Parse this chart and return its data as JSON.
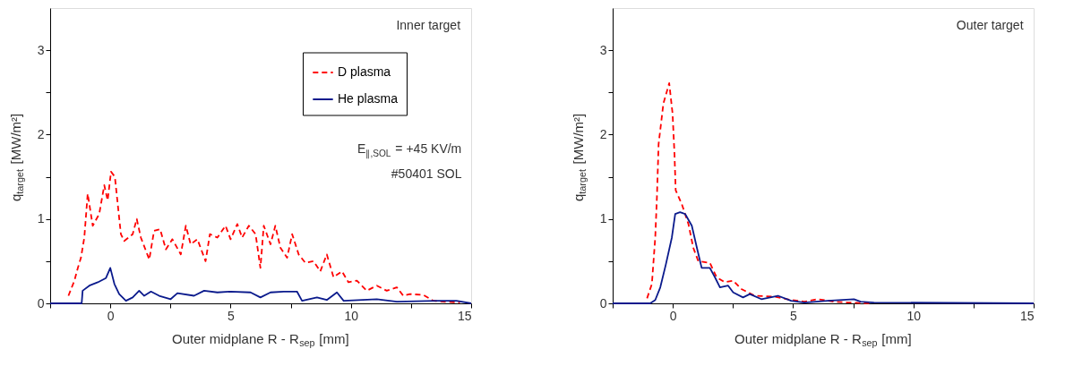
{
  "chart_data": [
    {
      "type": "line",
      "xlabel": "Outer midplane R - R$_{sep}$ [mm]",
      "ylabel": "q$_{target}$ [MW/m²]",
      "annotations": [
        "Inner target",
        "E$_{∥,SOL}$ = +45 KV/m",
        "#50401 SOL"
      ],
      "xlim": [
        -2.5,
        15
      ],
      "ylim": [
        0,
        3.5
      ],
      "xticks": [
        {
          "value": -2.5,
          "label": null
        },
        0,
        {
          "value": 2.5,
          "label": null
        },
        5,
        {
          "value": 7.5,
          "label": null
        },
        10,
        {
          "value": 12.5,
          "label": null
        },
        15
      ],
      "yticks": [
        0,
        {
          "value": 0.5,
          "label": null
        },
        1,
        {
          "value": 1.5,
          "label": null
        },
        2,
        {
          "value": 2.5,
          "label": null
        },
        3
      ],
      "grid": false,
      "legend": "top right",
      "series": [
        {
          "name": "D plasma",
          "color": "#ff0000",
          "line_style": "dashed",
          "x": [
            -1.74,
            -1.49,
            -1.35,
            -1.22,
            -1.08,
            -0.94,
            -0.73,
            -0.46,
            -0.25,
            -0.11,
            0.03,
            0.19,
            0.44,
            0.58,
            0.93,
            1.1,
            1.27,
            1.62,
            1.82,
            2.07,
            2.31,
            2.58,
            2.93,
            3.14,
            3.34,
            3.62,
            3.96,
            4.14,
            4.45,
            4.79,
            5.0,
            5.28,
            5.48,
            5.76,
            6.04,
            6.24,
            6.38,
            6.66,
            6.86,
            7.07,
            7.35,
            7.56,
            7.83,
            8.11,
            8.45,
            8.73,
            9.0,
            9.28,
            9.63,
            9.9,
            10.25,
            10.66,
            11.08,
            11.49,
            11.91,
            12.18,
            12.46,
            13.01,
            13.43,
            13.84,
            14.53
          ],
          "values": [
            0.09,
            0.27,
            0.42,
            0.54,
            0.78,
            1.3,
            0.92,
            1.06,
            1.4,
            1.22,
            1.56,
            1.5,
            0.82,
            0.74,
            0.82,
            1.0,
            0.78,
            0.52,
            0.86,
            0.88,
            0.64,
            0.76,
            0.58,
            0.92,
            0.7,
            0.76,
            0.5,
            0.82,
            0.78,
            0.92,
            0.76,
            0.94,
            0.78,
            0.92,
            0.82,
            0.42,
            0.92,
            0.7,
            0.92,
            0.66,
            0.54,
            0.82,
            0.58,
            0.48,
            0.5,
            0.38,
            0.58,
            0.31,
            0.38,
            0.25,
            0.27,
            0.15,
            0.21,
            0.15,
            0.19,
            0.09,
            0.11,
            0.1,
            0.03,
            0.02,
            0.01
          ]
        },
        {
          "name": "He plasma",
          "color": "#0a1a8c",
          "line_style": "solid",
          "x": [
            -2.5,
            -1.19,
            -1.15,
            -0.87,
            -0.52,
            -0.18,
            0.0,
            0.17,
            0.37,
            0.65,
            0.93,
            1.2,
            1.41,
            1.69,
            2.03,
            2.51,
            2.79,
            3.48,
            3.9,
            4.45,
            5.0,
            5.83,
            6.24,
            6.66,
            7.21,
            7.76,
            7.97,
            8.59,
            9.0,
            9.42,
            9.7,
            11.08,
            11.91,
            13.56,
            14.39,
            15
          ],
          "values": [
            0,
            0,
            0.15,
            0.21,
            0.25,
            0.3,
            0.42,
            0.23,
            0.11,
            0.03,
            0.07,
            0.15,
            0.09,
            0.14,
            0.09,
            0.05,
            0.12,
            0.09,
            0.15,
            0.13,
            0.14,
            0.13,
            0.07,
            0.13,
            0.14,
            0.14,
            0.03,
            0.07,
            0.04,
            0.13,
            0.03,
            0.05,
            0.02,
            0.03,
            0.03,
            0
          ]
        }
      ]
    },
    {
      "type": "line",
      "xlabel": "Outer midplane R - R$_{sep}$ [mm]",
      "ylabel": "q$_{target}$ [MW/m²]",
      "annotations": [
        "Outer target"
      ],
      "xlim": [
        -2.5,
        15
      ],
      "ylim": [
        0,
        3.5
      ],
      "xticks": [
        {
          "value": -2.5,
          "label": null
        },
        0,
        {
          "value": 2.5,
          "label": null
        },
        5,
        {
          "value": 7.5,
          "label": null
        },
        10,
        {
          "value": 12.5,
          "label": null
        },
        15
      ],
      "yticks": [
        0,
        {
          "value": 0.5,
          "label": null
        },
        1,
        {
          "value": 1.5,
          "label": null
        },
        2,
        {
          "value": 2.5,
          "label": null
        },
        3
      ],
      "grid": false,
      "series": [
        {
          "color": "#ff0000",
          "line_style": "dashed",
          "x": [
            -1.07,
            -0.87,
            -0.73,
            -0.66,
            -0.59,
            -0.39,
            -0.15,
            -0.01,
            0.07,
            0.12,
            0.37,
            0.65,
            0.85,
            1.06,
            1.54,
            1.82,
            2.16,
            2.51,
            2.85,
            3.4,
            4.23,
            4.92,
            5.47,
            6.02,
            6.71,
            7.26,
            8.22
          ],
          "values": [
            0.06,
            0.23,
            0.78,
            1.26,
            1.89,
            2.37,
            2.61,
            2.25,
            1.77,
            1.34,
            1.18,
            0.94,
            0.66,
            0.5,
            0.48,
            0.31,
            0.25,
            0.27,
            0.17,
            0.09,
            0.08,
            0.04,
            0.02,
            0.05,
            0.02,
            0.01,
            0
          ]
        },
        {
          "color": "#0a1a8c",
          "line_style": "solid",
          "x": [
            -2.5,
            -0.94,
            -0.73,
            -0.52,
            -0.29,
            -0.04,
            0.1,
            0.3,
            0.51,
            0.79,
            1.0,
            1.2,
            1.54,
            1.75,
            1.96,
            2.3,
            2.51,
            2.92,
            3.2,
            3.68,
            4.37,
            4.92,
            5.47,
            6.43,
            7.53,
            7.81,
            8.36,
            15
          ],
          "values": [
            0,
            0,
            0.04,
            0.19,
            0.46,
            0.78,
            1.06,
            1.08,
            1.06,
            0.92,
            0.66,
            0.42,
            0.42,
            0.31,
            0.19,
            0.21,
            0.13,
            0.07,
            0.11,
            0.05,
            0.09,
            0.03,
            0.01,
            0.03,
            0.05,
            0.02,
            0.01,
            0
          ]
        }
      ]
    }
  ]
}
